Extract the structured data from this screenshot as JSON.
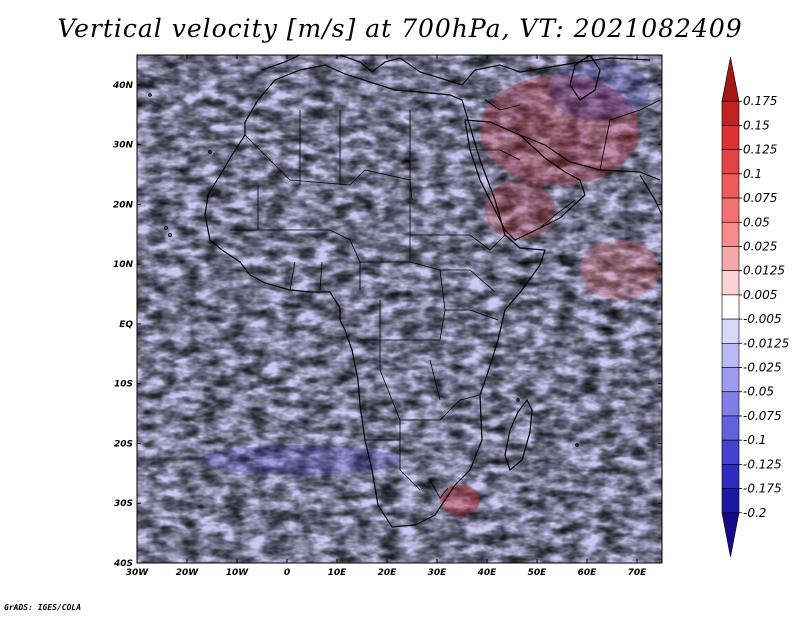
{
  "title": "Vertical velocity [m/s] at 700hPa, VT: 2021082409",
  "credit": "GrADS: IGES/COLA",
  "map": {
    "lon_range": [
      -30,
      75
    ],
    "lat_range": [
      -40,
      45
    ],
    "lon_ticks": [
      {
        "value": -30,
        "label": "30W"
      },
      {
        "value": -20,
        "label": "20W"
      },
      {
        "value": -10,
        "label": "10W"
      },
      {
        "value": 0,
        "label": "0"
      },
      {
        "value": 10,
        "label": "10E"
      },
      {
        "value": 20,
        "label": "20E"
      },
      {
        "value": 30,
        "label": "30E"
      },
      {
        "value": 40,
        "label": "40E"
      },
      {
        "value": 50,
        "label": "50E"
      },
      {
        "value": 60,
        "label": "60E"
      },
      {
        "value": 70,
        "label": "70E"
      }
    ],
    "lat_ticks": [
      {
        "value": 40,
        "label": "40N"
      },
      {
        "value": 30,
        "label": "30N"
      },
      {
        "value": 20,
        "label": "20N"
      },
      {
        "value": 10,
        "label": "10N"
      },
      {
        "value": 0,
        "label": "EQ"
      },
      {
        "value": -10,
        "label": "10S"
      },
      {
        "value": -20,
        "label": "20S"
      },
      {
        "value": -30,
        "label": "30S"
      },
      {
        "value": -40,
        "label": "40S"
      }
    ]
  },
  "colorbar": {
    "labels": [
      "0.175",
      "0.15",
      "0.125",
      "0.1",
      "0.075",
      "0.05",
      "0.025",
      "0.0125",
      "0.005",
      "-0.005",
      "-0.0125",
      "-0.025",
      "-0.05",
      "-0.075",
      "-0.1",
      "-0.125",
      "-0.175",
      "-0.2"
    ],
    "colors": [
      "#a51616",
      "#c32222",
      "#dc3232",
      "#e64141",
      "#ef5a5a",
      "#f27272",
      "#f48c8c",
      "#f6a8a8",
      "#fad2d2",
      "#ffffff",
      "#d7d7fa",
      "#b9b9f5",
      "#9c9cf0",
      "#7f7fe6",
      "#6262dc",
      "#4343cd",
      "#2d2dbd",
      "#1a1aa0",
      "#140a8c"
    ]
  }
}
